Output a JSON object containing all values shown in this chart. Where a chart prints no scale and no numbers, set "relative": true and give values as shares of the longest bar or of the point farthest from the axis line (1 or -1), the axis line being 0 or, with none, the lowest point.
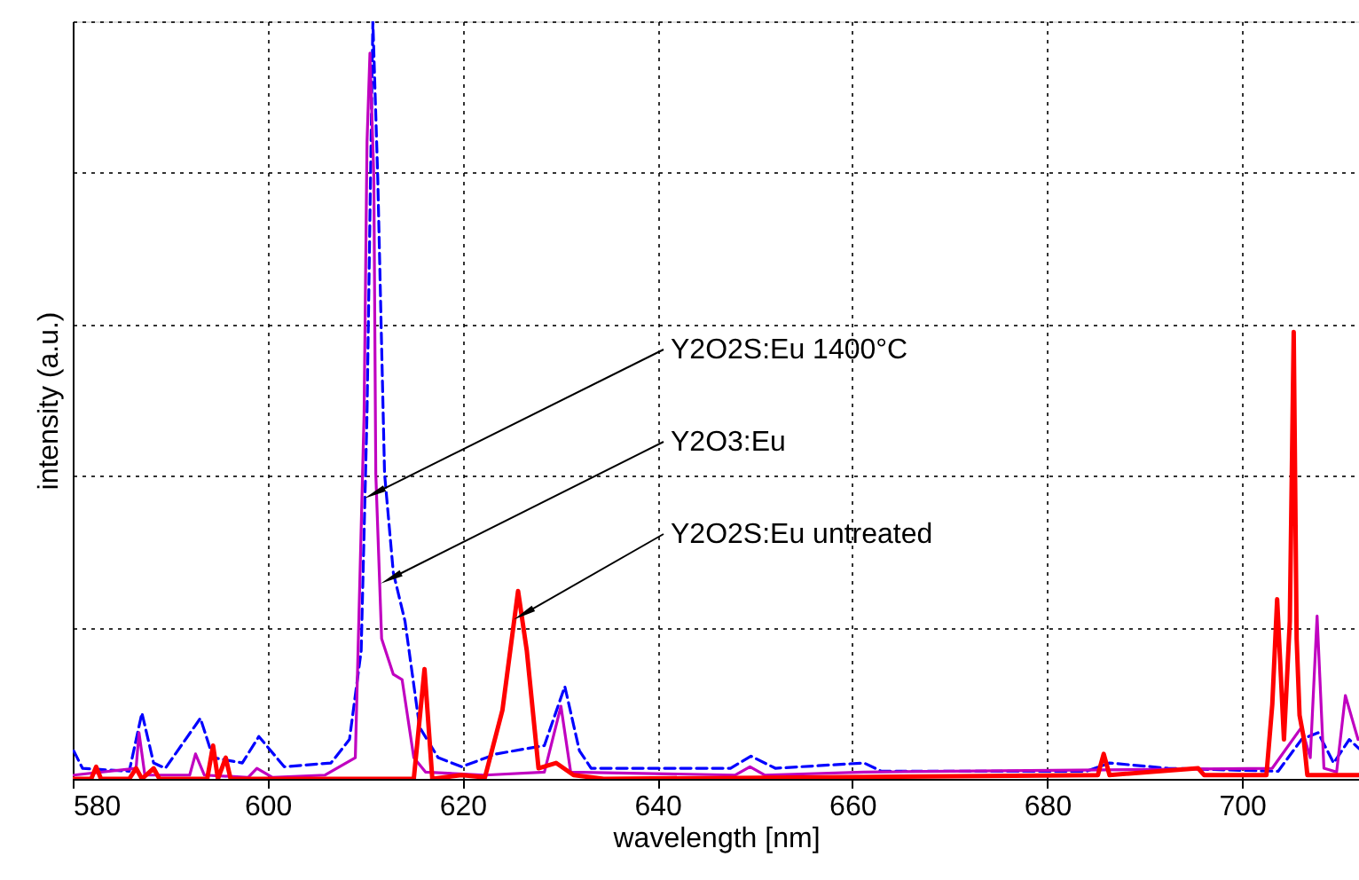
{
  "chart_data": {
    "type": "line",
    "relative": true,
    "xlabel": "wavelength [nm]",
    "ylabel": "intensity (a.u.)",
    "xlim": [
      580,
      712
    ],
    "xticks": [
      580,
      600,
      620,
      640,
      660,
      680,
      700
    ],
    "grid": true,
    "series": [
      {
        "color": "#0000ff",
        "line_style": "dashed",
        "x": [
          580.1,
          581,
          585.8,
          587.1,
          588.3,
          589.5,
          593.1,
          594.4,
          597.4,
          599.1,
          601.7,
          606.5,
          608.4,
          609.6,
          610.2,
          610.8,
          611.3,
          612.0,
          612.9,
          614.1,
          615.6,
          617.5,
          619.9,
          623.5,
          628.4,
          630.5,
          632.0,
          633.2,
          647.5,
          649.6,
          652.1,
          661.2,
          663,
          684,
          686.4,
          692.4,
          703.7,
          706.1,
          707.8,
          709.4,
          711,
          712
        ],
        "values": [
          0.037,
          0.014,
          0.01,
          0.087,
          0.021,
          0.014,
          0.08,
          0.028,
          0.021,
          0.056,
          0.016,
          0.021,
          0.052,
          0.169,
          0.482,
          1,
          0.794,
          0.403,
          0.272,
          0.208,
          0.068,
          0.028,
          0.016,
          0.033,
          0.044,
          0.122,
          0.037,
          0.014,
          0.014,
          0.03,
          0.014,
          0.021,
          0.01,
          0.01,
          0.021,
          0.014,
          0.01,
          0.052,
          0.061,
          0.021,
          0.052,
          0.04
        ]
      },
      {
        "color": "#c000c0",
        "line_style": "solid",
        "x": [
          580.1,
          586.5,
          586.8,
          587.4,
          592,
          592.6,
          593.5,
          598,
          598.9,
          600.5,
          605.9,
          609,
          609.9,
          610.2,
          610.5,
          610.9,
          611.1,
          611.7,
          612.9,
          613.8,
          615.0,
          616.2,
          622.3,
          628.4,
          630.1,
          631.1,
          648,
          649.5,
          651,
          661.2,
          703.1,
          706.1,
          707,
          707.7,
          708.4,
          709.7,
          710.6,
          711.9
        ],
        "values": [
          0.005,
          0.014,
          0.061,
          0.005,
          0.005,
          0.033,
          0.005,
          0.002,
          0.014,
          0.002,
          0.005,
          0.028,
          0.482,
          0.841,
          0.958,
          0.794,
          0.403,
          0.185,
          0.138,
          0.131,
          0.028,
          0.009,
          0.005,
          0.009,
          0.096,
          0.009,
          0.005,
          0.016,
          0.005,
          0.009,
          0.014,
          0.068,
          0.028,
          0.215,
          0.014,
          0.009,
          0.11,
          0.052
        ]
      },
      {
        "color": "#ff0000",
        "line_style": "solid",
        "x": [
          580.1,
          581.9,
          582.4,
          582.9,
          585.8,
          586.5,
          587.1,
          588.3,
          588.9,
          593.8,
          594.4,
          594.9,
          595.7,
          596.2,
          615.0,
          616.1,
          616.9,
          619.9,
          622.3,
          624.1,
          625.7,
          626.6,
          627.8,
          629.6,
          631.4,
          634.5,
          685.2,
          685.8,
          686.4,
          695.5,
          696.1,
          702.5,
          703.1,
          703.6,
          704.3,
          704.9,
          705.3,
          705.6,
          705.9,
          706.3,
          706.7,
          712
        ],
        "values": [
          0,
          0,
          0.016,
          0,
          0,
          0.014,
          0,
          0.014,
          0,
          0,
          0.044,
          0,
          0.028,
          0,
          0,
          0.145,
          0,
          0.005,
          0.002,
          0.091,
          0.248,
          0.169,
          0.014,
          0.021,
          0.005,
          0,
          0.005,
          0.033,
          0.005,
          0.014,
          0.005,
          0.005,
          0.098,
          0.237,
          0.052,
          0.208,
          0.59,
          0.185,
          0.084,
          0.056,
          0.005,
          0.005
        ]
      }
    ],
    "annotations": [
      {
        "text": "Y2O2S:Eu 1400°C",
        "x": 611.3,
        "y": 0.379
      },
      {
        "text": "Y2O3:Eu",
        "x": 613.0,
        "y": 0.267
      },
      {
        "text": "Y2O2S:Eu untreated",
        "x": 626.6,
        "y": 0.22
      }
    ]
  }
}
